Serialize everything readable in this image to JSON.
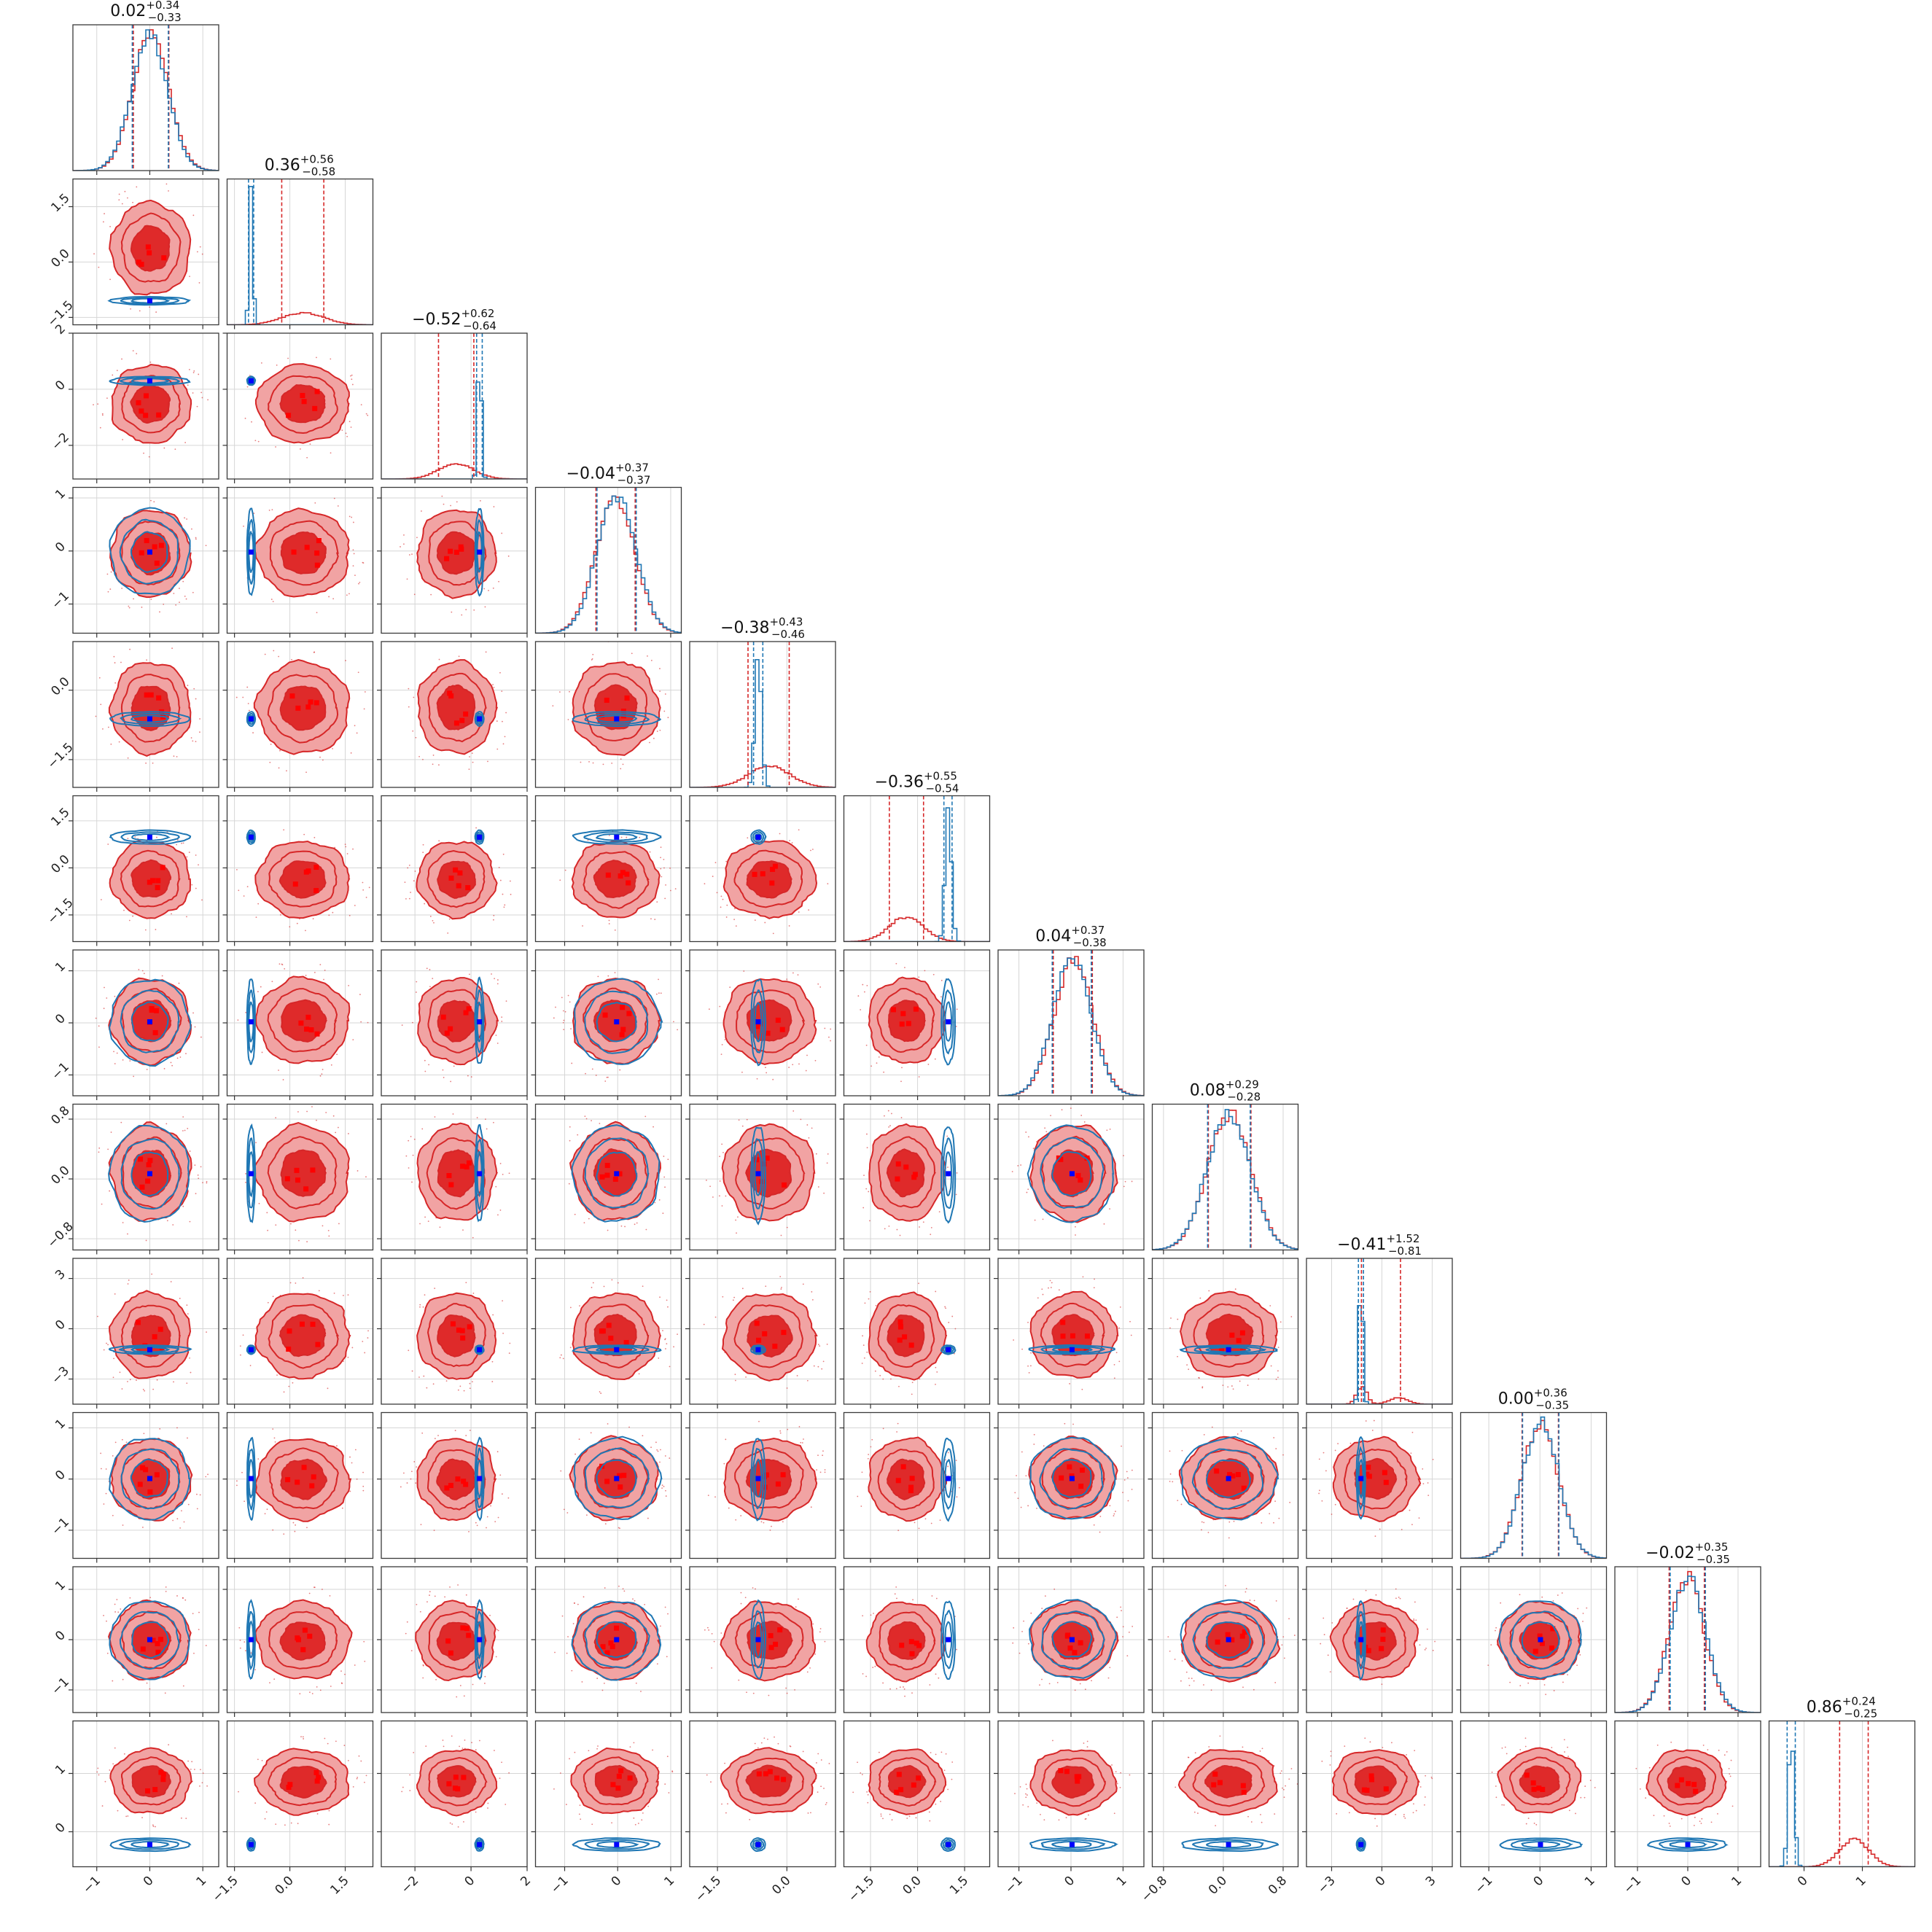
{
  "chart_data": {
    "type": "corner",
    "n_params": 12,
    "colors": {
      "red": "#d62728",
      "red_fill_outer": "#f1a3a3",
      "red_fill_inner": "#df2a2a",
      "blue": "#1f77b4",
      "blue_marker": "#0000ff",
      "red_marker": "#ff0000"
    },
    "series": [
      {
        "color": "#d62728"
      },
      {
        "color": "#1f77b4"
      }
    ],
    "params": [
      {
        "title_val": "0.02",
        "title_plus": "+0.34",
        "title_minus": "−0.33",
        "red": {
          "mu": 0.02,
          "sd": 0.34,
          "q": [
            -0.31,
            0.36
          ]
        },
        "blue": {
          "mu": 0.0,
          "sd": 0.34,
          "q": [
            -0.33,
            0.35
          ]
        },
        "range": [
          -1.45,
          1.3
        ],
        "ticks": [
          {
            "v": -1,
            "l": "−1"
          },
          {
            "v": 0,
            "l": "0"
          },
          {
            "v": 1,
            "l": "1"
          }
        ]
      },
      {
        "title_val": "0.36",
        "title_plus": "+0.56",
        "title_minus": "−0.58",
        "red": {
          "mu": 0.36,
          "sd": 0.57,
          "q": [
            -0.22,
            0.92
          ]
        },
        "blue": {
          "mu": -1.05,
          "sd": 0.05,
          "q": [
            -1.12,
            -0.98
          ]
        },
        "range": [
          -1.7,
          2.25
        ],
        "ticks": [
          {
            "v": -1.5,
            "l": "−1.5"
          },
          {
            "v": 0,
            "l": "0.0"
          },
          {
            "v": 1.5,
            "l": "1.5"
          }
        ]
      },
      {
        "title_val": "−0.52",
        "title_plus": "+0.62",
        "title_minus": "−0.64",
        "red": {
          "mu": -0.52,
          "sd": 0.63,
          "q": [
            -1.16,
            0.1
          ]
        },
        "blue": {
          "mu": 0.3,
          "sd": 0.07,
          "q": [
            0.2,
            0.4
          ]
        },
        "range": [
          -3.2,
          2.0
        ],
        "ticks": [
          {
            "v": -2,
            "l": "−2"
          },
          {
            "v": 0,
            "l": "0"
          },
          {
            "v": 2,
            "l": "2"
          }
        ]
      },
      {
        "title_val": "−0.04",
        "title_plus": "+0.37",
        "title_minus": "−0.37",
        "red": {
          "mu": -0.04,
          "sd": 0.37,
          "q": [
            -0.41,
            0.33
          ]
        },
        "blue": {
          "mu": -0.02,
          "sd": 0.37,
          "q": [
            -0.39,
            0.35
          ]
        },
        "range": [
          -1.55,
          1.2
        ],
        "ticks": [
          {
            "v": -1,
            "l": "−1"
          },
          {
            "v": 0,
            "l": "0"
          },
          {
            "v": 1,
            "l": "1"
          }
        ]
      },
      {
        "title_val": "−0.38",
        "title_plus": "+0.43",
        "title_minus": "−0.46",
        "red": {
          "mu": -0.38,
          "sd": 0.45,
          "q": [
            -0.84,
            0.05
          ]
        },
        "blue": {
          "mu": -0.62,
          "sd": 0.07,
          "q": [
            -0.72,
            -0.52
          ]
        },
        "range": [
          -2.1,
          1.05
        ],
        "ticks": [
          {
            "v": -1.5,
            "l": "−1.5"
          },
          {
            "v": 0,
            "l": "0.0"
          }
        ]
      },
      {
        "title_val": "−0.36",
        "title_plus": "+0.55",
        "title_minus": "−0.54",
        "red": {
          "mu": -0.36,
          "sd": 0.55,
          "q": [
            -0.9,
            0.19
          ]
        },
        "blue": {
          "mu": 0.98,
          "sd": 0.1,
          "q": [
            0.84,
            1.1
          ]
        },
        "range": [
          -2.35,
          2.3
        ],
        "ticks": [
          {
            "v": -1.5,
            "l": "−1.5"
          },
          {
            "v": 0,
            "l": "0.0"
          },
          {
            "v": 1.5,
            "l": "1.5"
          }
        ]
      },
      {
        "title_val": "0.04",
        "title_plus": "+0.37",
        "title_minus": "−0.38",
        "red": {
          "mu": 0.04,
          "sd": 0.37,
          "q": [
            -0.34,
            0.41
          ]
        },
        "blue": {
          "mu": 0.02,
          "sd": 0.37,
          "q": [
            -0.36,
            0.39
          ]
        },
        "range": [
          -1.4,
          1.4
        ],
        "ticks": [
          {
            "v": -1,
            "l": "−1"
          },
          {
            "v": 0,
            "l": "0"
          },
          {
            "v": 1,
            "l": "1"
          }
        ]
      },
      {
        "title_val": "0.08",
        "title_plus": "+0.29",
        "title_minus": "−0.28",
        "red": {
          "mu": 0.08,
          "sd": 0.29,
          "q": [
            -0.2,
            0.37
          ]
        },
        "blue": {
          "mu": 0.07,
          "sd": 0.29,
          "q": [
            -0.21,
            0.36
          ]
        },
        "range": [
          -0.95,
          1.0
        ],
        "ticks": [
          {
            "v": -0.8,
            "l": "−0.8"
          },
          {
            "v": 0,
            "l": "0.0"
          },
          {
            "v": 0.8,
            "l": "0.8"
          }
        ]
      },
      {
        "title_val": "−0.41",
        "title_plus": "+1.52",
        "title_minus": "−0.81",
        "red": {
          "mu": -0.41,
          "sd": 1.2,
          "q": [
            -1.22,
            1.11
          ]
        },
        "blue": {
          "mu": -1.25,
          "sd": 0.12,
          "q": [
            -1.4,
            -1.1
          ]
        },
        "range": [
          -4.5,
          4.2
        ],
        "ticks": [
          {
            "v": -3,
            "l": "−3"
          },
          {
            "v": 0,
            "l": "0"
          },
          {
            "v": 3,
            "l": "3"
          }
        ]
      },
      {
        "title_val": "0.00",
        "title_plus": "+0.36",
        "title_minus": "−0.35",
        "red": {
          "mu": 0.0,
          "sd": 0.36,
          "q": [
            -0.35,
            0.36
          ]
        },
        "blue": {
          "mu": 0.01,
          "sd": 0.36,
          "q": [
            -0.34,
            0.37
          ]
        },
        "range": [
          -1.55,
          1.3
        ],
        "ticks": [
          {
            "v": -1,
            "l": "−1"
          },
          {
            "v": 0,
            "l": "0"
          },
          {
            "v": 1,
            "l": "1"
          }
        ]
      },
      {
        "title_val": "−0.02",
        "title_plus": "+0.35",
        "title_minus": "−0.35",
        "red": {
          "mu": -0.02,
          "sd": 0.35,
          "q": [
            -0.37,
            0.33
          ]
        },
        "blue": {
          "mu": 0.0,
          "sd": 0.35,
          "q": [
            -0.35,
            0.35
          ]
        },
        "range": [
          -1.45,
          1.45
        ],
        "ticks": [
          {
            "v": -1,
            "l": "−1"
          },
          {
            "v": 0,
            "l": "0"
          },
          {
            "v": 1,
            "l": "1"
          }
        ]
      },
      {
        "title_val": "0.86",
        "title_plus": "+0.24",
        "title_minus": "−0.25",
        "red": {
          "mu": 0.86,
          "sd": 0.25,
          "q": [
            0.61,
            1.1
          ]
        },
        "blue": {
          "mu": -0.22,
          "sd": 0.05,
          "q": [
            -0.29,
            -0.15
          ]
        },
        "range": [
          -0.6,
          1.9
        ],
        "ticks": [
          {
            "v": 0,
            "l": "0"
          },
          {
            "v": 1,
            "l": "1"
          }
        ]
      }
    ]
  }
}
